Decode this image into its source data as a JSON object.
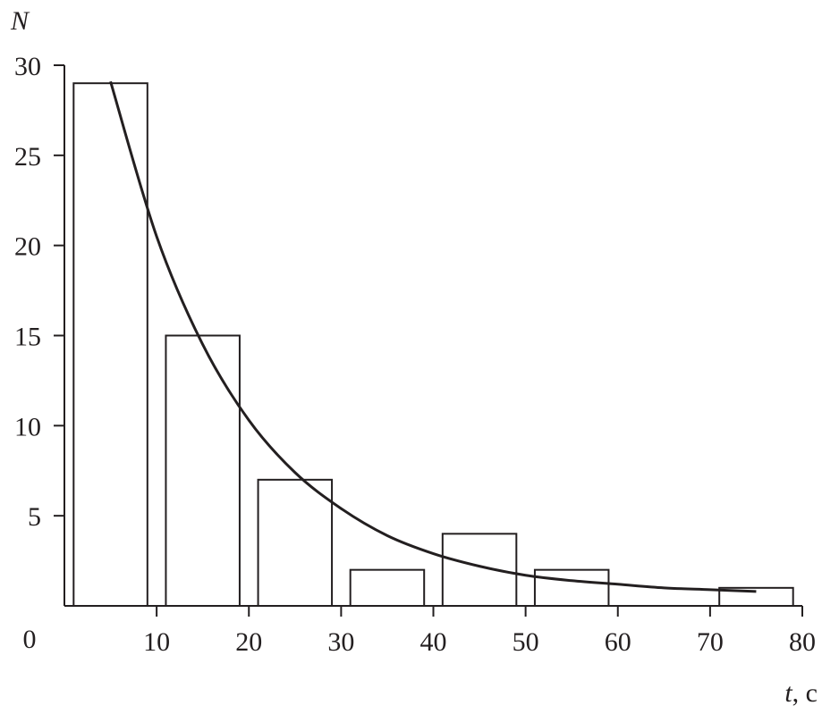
{
  "chart_data": {
    "type": "bar",
    "title": "",
    "xlabel_var": "t",
    "xlabel_unit": ", с",
    "ylabel": "N",
    "xlim": [
      0,
      80
    ],
    "ylim": [
      0,
      30
    ],
    "origin_label": "0",
    "x_ticks": [
      10,
      20,
      30,
      40,
      50,
      60,
      70,
      80
    ],
    "y_ticks": [
      5,
      10,
      15,
      20,
      25,
      30
    ],
    "grid": false,
    "bins": [
      {
        "from": 0,
        "to": 10,
        "value": 29
      },
      {
        "from": 10,
        "to": 20,
        "value": 15
      },
      {
        "from": 20,
        "to": 30,
        "value": 7
      },
      {
        "from": 30,
        "to": 40,
        "value": 2
      },
      {
        "from": 40,
        "to": 50,
        "value": 4
      },
      {
        "from": 50,
        "to": 60,
        "value": 2
      },
      {
        "from": 60,
        "to": 70,
        "value": 0
      },
      {
        "from": 70,
        "to": 80,
        "value": 1
      }
    ],
    "curve": {
      "type": "line",
      "x": [
        5,
        10,
        15,
        20,
        25,
        30,
        35,
        40,
        45,
        50,
        55,
        60,
        65,
        70,
        75
      ],
      "y": [
        29.1,
        20.5,
        14.5,
        10.3,
        7.4,
        5.4,
        3.9,
        2.9,
        2.2,
        1.7,
        1.4,
        1.2,
        1.0,
        0.9,
        0.8
      ]
    },
    "colors": {
      "ink": "#231f20",
      "bar_fill": "#ffffff"
    }
  }
}
